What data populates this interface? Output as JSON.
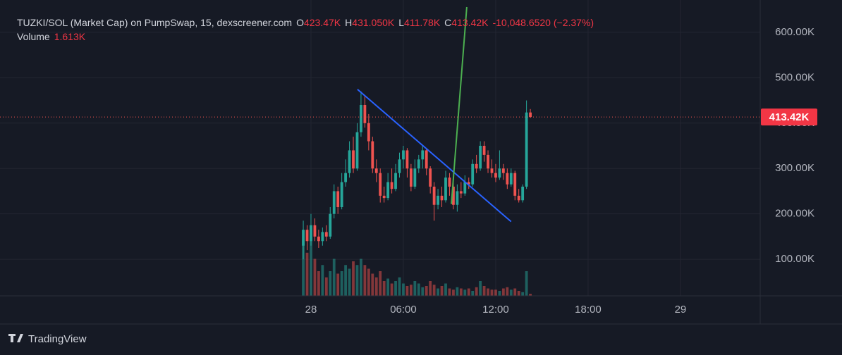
{
  "chart_data": {
    "type": "candlestick",
    "title": "TUZKI/SOL (Market Cap) on PumpSwap, 15, dexscreener.com",
    "ohlc_legend": [
      {
        "label": "O",
        "value": "423.47K"
      },
      {
        "label": "H",
        "value": "431.050K"
      },
      {
        "label": "L",
        "value": "411.78K"
      },
      {
        "label": "C",
        "value": "413.42K"
      }
    ],
    "change": "-10,048.6520 (−2.37%)",
    "volume_label": "Volume",
    "volume_value": "1.613K",
    "brand": "TradingView",
    "last_label": "413.42K",
    "up_color": "#26a69a",
    "down_color": "#ef5350",
    "x": [
      -0.5,
      -0.25,
      0,
      0.25,
      0.5,
      0.75,
      1,
      1.25,
      1.5,
      1.75,
      2,
      2.25,
      2.5,
      2.75,
      3,
      3.25,
      3.5,
      3.75,
      4,
      4.25,
      4.5,
      4.75,
      5,
      5.25,
      5.5,
      5.75,
      6,
      6.25,
      6.5,
      6.75,
      7,
      7.25,
      7.5,
      7.75,
      8,
      8.25,
      8.5,
      8.75,
      9,
      9.25,
      9.5,
      9.75,
      10,
      10.25,
      10.5,
      10.75,
      11,
      11.25,
      11.5,
      11.75,
      12,
      12.25,
      12.5,
      12.75,
      13,
      13.25,
      13.5,
      13.75,
      14,
      14.25
    ],
    "open": [
      130,
      165,
      140,
      175,
      150,
      140,
      160,
      150,
      200,
      250,
      215,
      270,
      290,
      340,
      300,
      380,
      440,
      400,
      360,
      300,
      290,
      240,
      235,
      270,
      255,
      290,
      320,
      340,
      300,
      260,
      300,
      320,
      340,
      300,
      260,
      220,
      240,
      230,
      280,
      260,
      220,
      250,
      245,
      270,
      265,
      310,
      300,
      350,
      330,
      300,
      290,
      280,
      300,
      290,
      265,
      290,
      240,
      230,
      260,
      423.47
    ],
    "high": [
      185,
      175,
      200,
      190,
      165,
      170,
      175,
      215,
      265,
      260,
      290,
      320,
      360,
      370,
      400,
      470,
      460,
      420,
      370,
      320,
      300,
      260,
      290,
      300,
      310,
      335,
      350,
      345,
      310,
      320,
      330,
      350,
      345,
      305,
      270,
      255,
      260,
      295,
      290,
      270,
      265,
      270,
      285,
      280,
      320,
      330,
      360,
      360,
      340,
      320,
      310,
      340,
      310,
      300,
      300,
      295,
      255,
      265,
      450,
      431.05
    ],
    "low": [
      100,
      120,
      130,
      140,
      125,
      130,
      140,
      145,
      190,
      200,
      210,
      260,
      280,
      290,
      295,
      370,
      390,
      340,
      290,
      270,
      225,
      225,
      230,
      245,
      250,
      280,
      300,
      280,
      250,
      255,
      290,
      300,
      285,
      245,
      185,
      210,
      215,
      225,
      240,
      210,
      205,
      235,
      240,
      255,
      260,
      290,
      295,
      315,
      290,
      280,
      270,
      275,
      275,
      255,
      260,
      230,
      225,
      225,
      255,
      411.78
    ],
    "close": [
      165,
      140,
      175,
      150,
      140,
      160,
      150,
      200,
      250,
      215,
      270,
      290,
      340,
      300,
      380,
      440,
      400,
      360,
      300,
      290,
      240,
      235,
      270,
      255,
      290,
      320,
      340,
      300,
      260,
      300,
      320,
      340,
      300,
      260,
      220,
      240,
      230,
      280,
      260,
      220,
      250,
      245,
      270,
      265,
      310,
      300,
      350,
      330,
      300,
      290,
      280,
      300,
      290,
      265,
      290,
      240,
      230,
      260,
      423.47,
      413.42
    ],
    "volume": [
      45,
      35,
      55,
      30,
      20,
      25,
      15,
      20,
      30,
      18,
      20,
      25,
      22,
      28,
      25,
      30,
      25,
      22,
      18,
      15,
      20,
      12,
      14,
      10,
      12,
      15,
      10,
      8,
      9,
      12,
      10,
      7,
      8,
      12,
      9,
      6,
      8,
      10,
      6,
      5,
      7,
      6,
      5,
      6,
      4,
      7,
      12,
      8,
      6,
      5,
      5,
      4,
      6,
      7,
      5,
      6,
      4,
      3,
      20,
      1.613
    ],
    "volume_ylim": [
      0,
      60
    ],
    "xlim": [
      -20.2,
      29.18
    ],
    "xticks": [
      {
        "value": 0,
        "label": "28"
      },
      {
        "value": 6,
        "label": "06:00"
      },
      {
        "value": 12,
        "label": "12:00"
      },
      {
        "value": 18,
        "label": "18:00"
      },
      {
        "value": 24,
        "label": "29"
      }
    ],
    "ylim": [
      19.4,
      671.3
    ],
    "yticks": [
      {
        "value": 100,
        "label": "100.00K"
      },
      {
        "value": 200,
        "label": "200.00K"
      },
      {
        "value": 300,
        "label": "300.00K"
      },
      {
        "value": 400,
        "label": "400.00K"
      },
      {
        "value": 500,
        "label": "500.00K"
      },
      {
        "value": 600,
        "label": "600.00K"
      }
    ],
    "grid": true,
    "trend_lines": [
      {
        "color": "#2962ff",
        "x": [
          3.02,
          13.0
        ],
        "y": [
          474.4,
          183
        ]
      },
      {
        "color": "#4caf50",
        "x": [
          9.12,
          10.12
        ],
        "y": [
          221.7,
          655.8
        ]
      }
    ]
  }
}
